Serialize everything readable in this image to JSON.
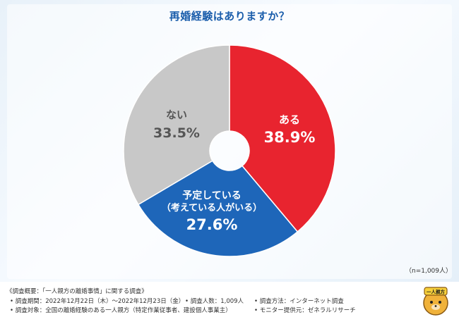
{
  "chart_data": {
    "type": "pie",
    "title": "再婚経験はありますか？",
    "slices": [
      {
        "label": "ある",
        "value": 38.9,
        "display": "38.9%",
        "color": "#e8242f"
      },
      {
        "label": "予定している\n（考えている人がいる）",
        "value": 27.6,
        "display": "27.6%",
        "color": "#1e66b9"
      },
      {
        "label": "ない",
        "value": 33.5,
        "display": "33.5%",
        "color": "#c8c8c8"
      }
    ],
    "donut": true,
    "start_angle": "12 o'clock",
    "direction": "clockwise"
  },
  "sample_size": "（n=1,009人）",
  "footer": {
    "survey_title": "《調査概要：「一人親方の離婚事情」に関する調査》",
    "period": "• 調査期間：2022年12月22日（木）〜2022年12月23日（金）",
    "count": "• 調査人数：1,009人",
    "method": "• 調査方法：インターネット調査",
    "target": "• 調査対象：全国の離婚経験のある一人親方（特定作業従事者、建設個人事業主）",
    "provider": "• モニター提供元：ゼネラルリサーチ"
  },
  "mascot": {
    "badge_text": "一人親方"
  }
}
